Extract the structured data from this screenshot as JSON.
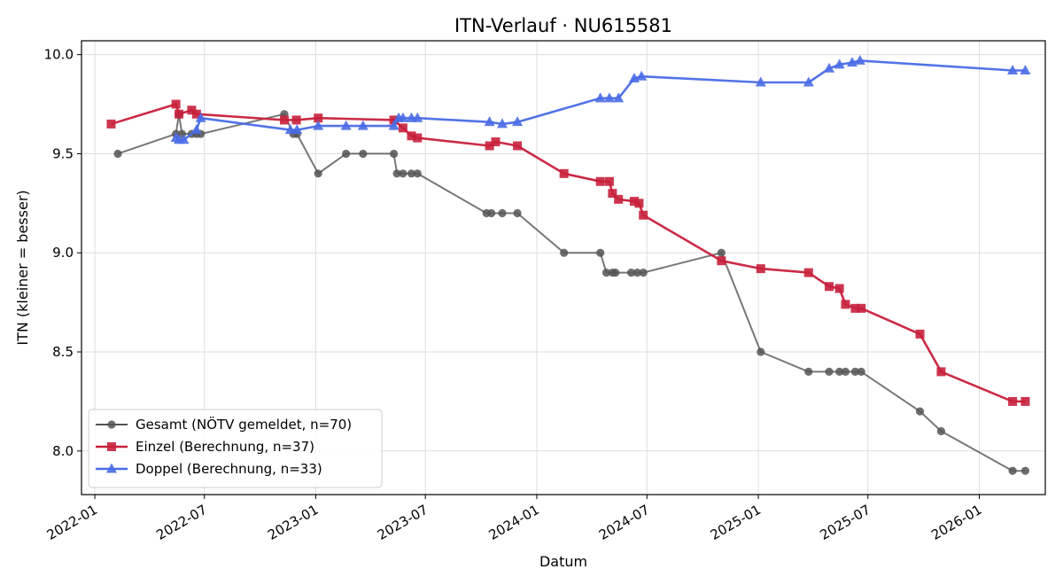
{
  "chart_data": {
    "type": "line",
    "title": "ITN-Verlauf · NU615581",
    "xlabel": "Datum",
    "ylabel": "ITN  (kleiner = besser)",
    "ylim": [
      7.78,
      10.07
    ],
    "xlim": [
      "2021-12-10",
      "2026-04-20"
    ],
    "grid": true,
    "legend_position": "lower-left",
    "x_ticks": [
      "2022-01",
      "2022-07",
      "2023-01",
      "2023-07",
      "2024-01",
      "2024-07",
      "2025-01",
      "2025-07",
      "2026-01"
    ],
    "y_ticks": [
      "8.0",
      "8.5",
      "9.0",
      "9.5",
      "10.0"
    ],
    "series": [
      {
        "name": "Gesamt (NÖTV gemeldet, n=70)",
        "color": "#555555",
        "marker": "circle",
        "points": [
          [
            "2022-02-08",
            9.5
          ],
          [
            "2022-05-15",
            9.6
          ],
          [
            "2022-05-20",
            9.7
          ],
          [
            "2022-05-25",
            9.6
          ],
          [
            "2022-06-10",
            9.6
          ],
          [
            "2022-06-18",
            9.6
          ],
          [
            "2022-06-25",
            9.6
          ],
          [
            "2022-11-10",
            9.7
          ],
          [
            "2022-11-25",
            9.6
          ],
          [
            "2022-12-01",
            9.6
          ],
          [
            "2023-01-05",
            9.4
          ],
          [
            "2023-02-20",
            9.5
          ],
          [
            "2023-03-20",
            9.5
          ],
          [
            "2023-05-10",
            9.5
          ],
          [
            "2023-05-15",
            9.4
          ],
          [
            "2023-05-25",
            9.4
          ],
          [
            "2023-06-08",
            9.4
          ],
          [
            "2023-06-18",
            9.4
          ],
          [
            "2023-10-10",
            9.2
          ],
          [
            "2023-10-18",
            9.2
          ],
          [
            "2023-11-05",
            9.2
          ],
          [
            "2023-11-30",
            9.2
          ],
          [
            "2024-02-15",
            9.0
          ],
          [
            "2024-04-15",
            9.0
          ],
          [
            "2024-04-25",
            8.9
          ],
          [
            "2024-05-05",
            8.9
          ],
          [
            "2024-05-10",
            8.9
          ],
          [
            "2024-06-05",
            8.9
          ],
          [
            "2024-06-15",
            8.9
          ],
          [
            "2024-06-25",
            8.9
          ],
          [
            "2024-11-01",
            9.0
          ],
          [
            "2025-01-05",
            8.5
          ],
          [
            "2025-03-25",
            8.4
          ],
          [
            "2025-04-28",
            8.4
          ],
          [
            "2025-05-15",
            8.4
          ],
          [
            "2025-05-25",
            8.4
          ],
          [
            "2025-06-10",
            8.4
          ],
          [
            "2025-06-20",
            8.4
          ],
          [
            "2025-09-25",
            8.2
          ],
          [
            "2025-10-30",
            8.1
          ],
          [
            "2026-02-25",
            7.9
          ],
          [
            "2026-03-18",
            7.9
          ]
        ]
      },
      {
        "name": "Einzel (Berechnung, n=37)",
        "color": "#c8203c",
        "marker": "square",
        "points": [
          [
            "2022-01-28",
            9.65
          ],
          [
            "2022-05-15",
            9.75
          ],
          [
            "2022-05-20",
            9.7
          ],
          [
            "2022-06-10",
            9.72
          ],
          [
            "2022-06-18",
            9.7
          ],
          [
            "2022-11-10",
            9.67
          ],
          [
            "2022-11-30",
            9.67
          ],
          [
            "2023-01-05",
            9.68
          ],
          [
            "2023-05-10",
            9.67
          ],
          [
            "2023-05-25",
            9.63
          ],
          [
            "2023-06-08",
            9.59
          ],
          [
            "2023-06-18",
            9.58
          ],
          [
            "2023-10-15",
            9.54
          ],
          [
            "2023-10-25",
            9.56
          ],
          [
            "2023-11-30",
            9.54
          ],
          [
            "2024-02-15",
            9.4
          ],
          [
            "2024-04-15",
            9.36
          ],
          [
            "2024-04-30",
            9.36
          ],
          [
            "2024-05-05",
            9.3
          ],
          [
            "2024-05-15",
            9.27
          ],
          [
            "2024-06-10",
            9.26
          ],
          [
            "2024-06-18",
            9.25
          ],
          [
            "2024-06-25",
            9.19
          ],
          [
            "2024-11-01",
            8.96
          ],
          [
            "2025-01-05",
            8.92
          ],
          [
            "2025-03-25",
            8.9
          ],
          [
            "2025-04-28",
            8.83
          ],
          [
            "2025-05-15",
            8.82
          ],
          [
            "2025-05-25",
            8.74
          ],
          [
            "2025-06-10",
            8.72
          ],
          [
            "2025-06-20",
            8.72
          ],
          [
            "2025-09-25",
            8.59
          ],
          [
            "2025-10-30",
            8.4
          ],
          [
            "2026-02-25",
            8.25
          ],
          [
            "2026-03-18",
            8.25
          ]
        ]
      },
      {
        "name": "Doppel (Berechnung, n=33)",
        "color": "#4a6be6",
        "marker": "triangle",
        "points": [
          [
            "2022-05-15",
            9.58
          ],
          [
            "2022-05-20",
            9.57
          ],
          [
            "2022-05-28",
            9.57
          ],
          [
            "2022-06-18",
            9.62
          ],
          [
            "2022-06-25",
            9.68
          ],
          [
            "2022-11-20",
            9.62
          ],
          [
            "2022-12-01",
            9.62
          ],
          [
            "2023-01-05",
            9.64
          ],
          [
            "2023-02-20",
            9.64
          ],
          [
            "2023-03-20",
            9.64
          ],
          [
            "2023-05-10",
            9.64
          ],
          [
            "2023-05-18",
            9.68
          ],
          [
            "2023-05-25",
            9.68
          ],
          [
            "2023-06-08",
            9.68
          ],
          [
            "2023-06-18",
            9.68
          ],
          [
            "2023-10-15",
            9.66
          ],
          [
            "2023-11-05",
            9.65
          ],
          [
            "2023-11-30",
            9.66
          ],
          [
            "2024-04-15",
            9.78
          ],
          [
            "2024-04-30",
            9.78
          ],
          [
            "2024-05-15",
            9.78
          ],
          [
            "2024-06-10",
            9.88
          ],
          [
            "2024-06-22",
            9.89
          ],
          [
            "2025-01-05",
            9.86
          ],
          [
            "2025-03-25",
            9.86
          ],
          [
            "2025-04-28",
            9.93
          ],
          [
            "2025-05-15",
            9.95
          ],
          [
            "2025-06-05",
            9.96
          ],
          [
            "2025-06-18",
            9.97
          ],
          [
            "2026-02-25",
            9.92
          ],
          [
            "2026-03-18",
            9.92
          ]
        ]
      }
    ]
  }
}
